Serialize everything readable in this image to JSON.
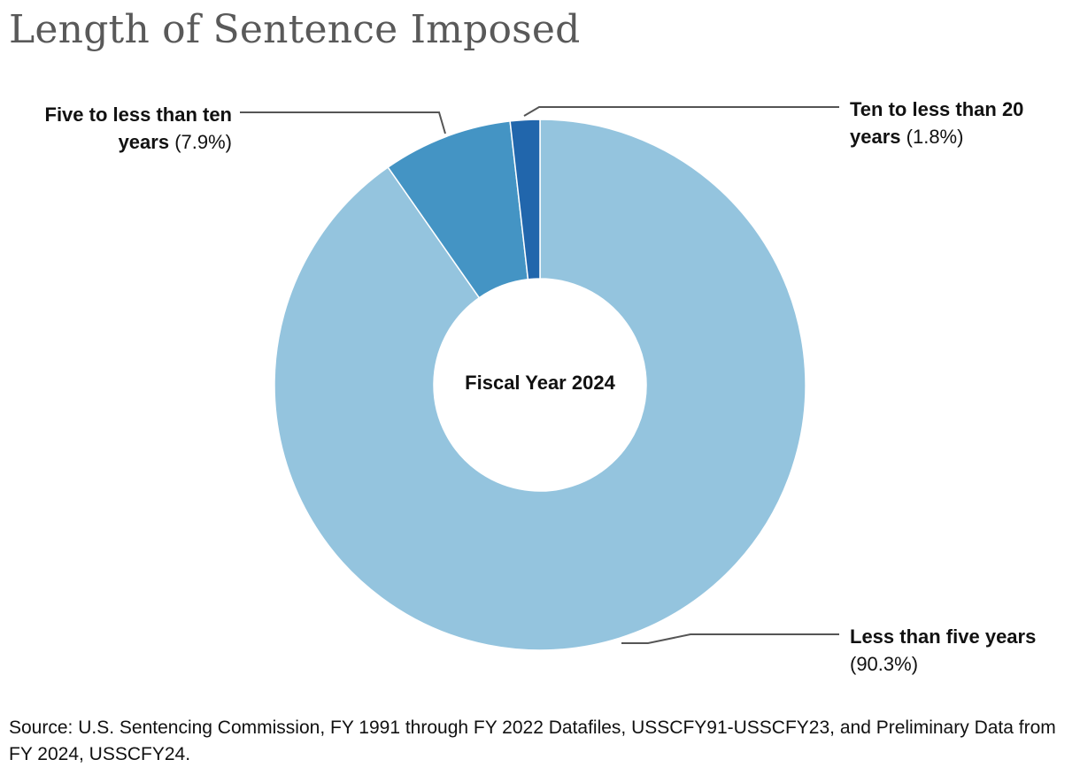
{
  "title": "Length of Sentence Imposed",
  "center_label": "Fiscal Year 2024",
  "source": "Source: U.S. Sentencing Commission, FY 1991 through FY 2022 Datafiles, USSCFY91-USSCFY23, and Preliminary Data from FY 2024, USSCFY24.",
  "chart_data": {
    "type": "pie",
    "donut": true,
    "title": "Length of Sentence Imposed",
    "center_text": "Fiscal Year 2024",
    "slices": [
      {
        "label": "Less than five years",
        "value": 90.3,
        "display": "(90.3%)",
        "color": "#94c4de"
      },
      {
        "label": "Five to less than ten years",
        "value": 7.9,
        "display": "(7.9%)",
        "color": "#4494c4"
      },
      {
        "label": "Ten to less than 20 years",
        "value": 1.8,
        "display": "(1.8%)",
        "color": "#2166ac"
      }
    ]
  },
  "labels": {
    "less_five": {
      "name": "Less than five years",
      "pct": "(90.3%)"
    },
    "five_ten": {
      "name_line1": "Five to less than ten",
      "name_line2": "years",
      "pct": "(7.9%)"
    },
    "ten_twenty": {
      "name_line1": "Ten to less than 20",
      "name_line2": "years",
      "pct": "(1.8%)"
    }
  },
  "colors": {
    "title": "#595959",
    "leader_line": "#555555",
    "slice_border": "#ffffff"
  }
}
